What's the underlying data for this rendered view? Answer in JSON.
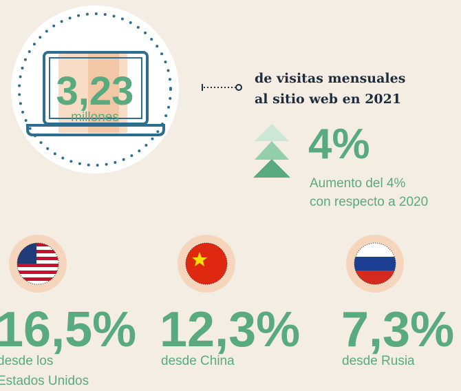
{
  "hero": {
    "value": "3,23",
    "unit": "millones",
    "caption": [
      "de visitas mensuales",
      "al sitio web en 2021"
    ]
  },
  "growth": {
    "value": "4%",
    "caption": [
      "Aumento del 4%",
      "con respecto a 2020"
    ]
  },
  "countries": [
    {
      "value": "16,5%",
      "caption": [
        "desde los",
        "Estados Unidos"
      ]
    },
    {
      "value": "12,3%",
      "caption": [
        "desde China"
      ]
    },
    {
      "value": "7,3%",
      "caption": [
        "desde Rusia"
      ]
    }
  ]
}
